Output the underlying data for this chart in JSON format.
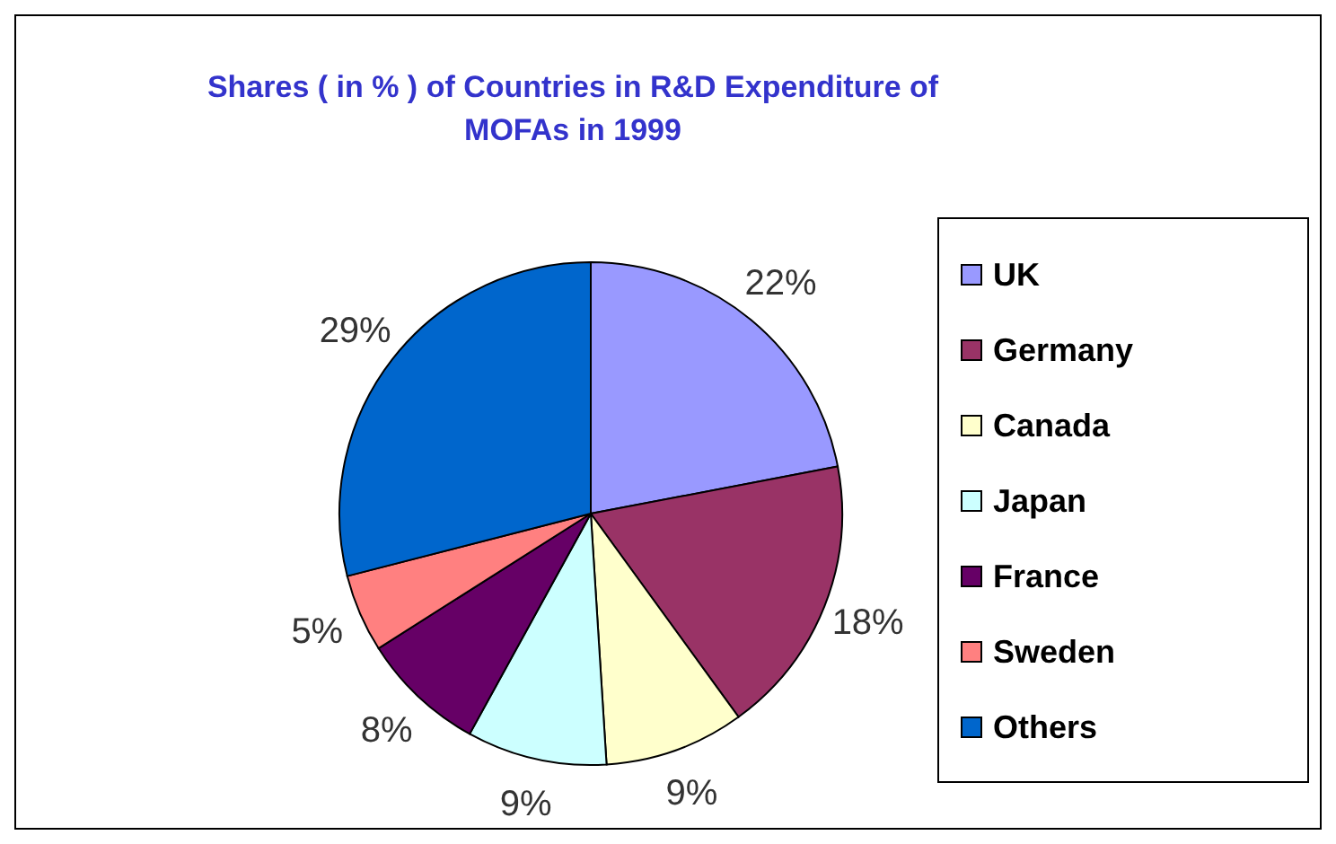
{
  "chart_data": {
    "type": "pie",
    "title": "Shares ( in % ) of Countries in R&D Expenditure of MOFAs in 1999",
    "categories": [
      "UK",
      "Germany",
      "Canada",
      "Japan",
      "France",
      "Sweden",
      "Others"
    ],
    "values": [
      22,
      18,
      9,
      9,
      8,
      5,
      29
    ],
    "value_labels": [
      "22%",
      "18%",
      "9%",
      "9%",
      "8%",
      "5%",
      "29%"
    ],
    "colors": [
      "#9999ff",
      "#993366",
      "#ffffcc",
      "#ccffff",
      "#660066",
      "#ff8080",
      "#0066cc"
    ],
    "legend": "right"
  }
}
